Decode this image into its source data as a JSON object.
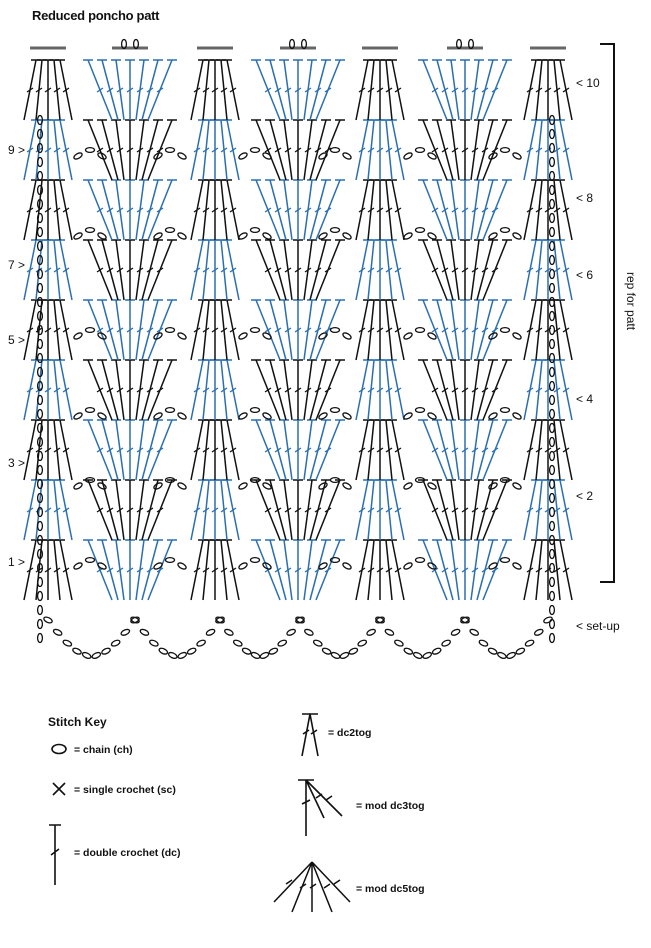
{
  "title": "Reduced poncho patt",
  "rows_left": [
    "9 >",
    "7 >",
    "5 >",
    "3 >",
    "1 >"
  ],
  "rows_right": [
    "< 10",
    "< 8",
    "< 6",
    "< 4",
    "< 2",
    "< set-up"
  ],
  "repeat_label": "rep for patt",
  "key": {
    "title": "Stitch Key",
    "chain": "= chain (ch)",
    "single_crochet": "= single crochet (sc)",
    "double_crochet": "= double crochet (dc)",
    "dc2tog": "= dc2tog",
    "mod_dc3tog": "= mod dc3tog",
    "mod_dc5tog": "= mod dc5tog"
  },
  "colors": {
    "ink": "#111111",
    "accent": "#2a6fb0"
  }
}
